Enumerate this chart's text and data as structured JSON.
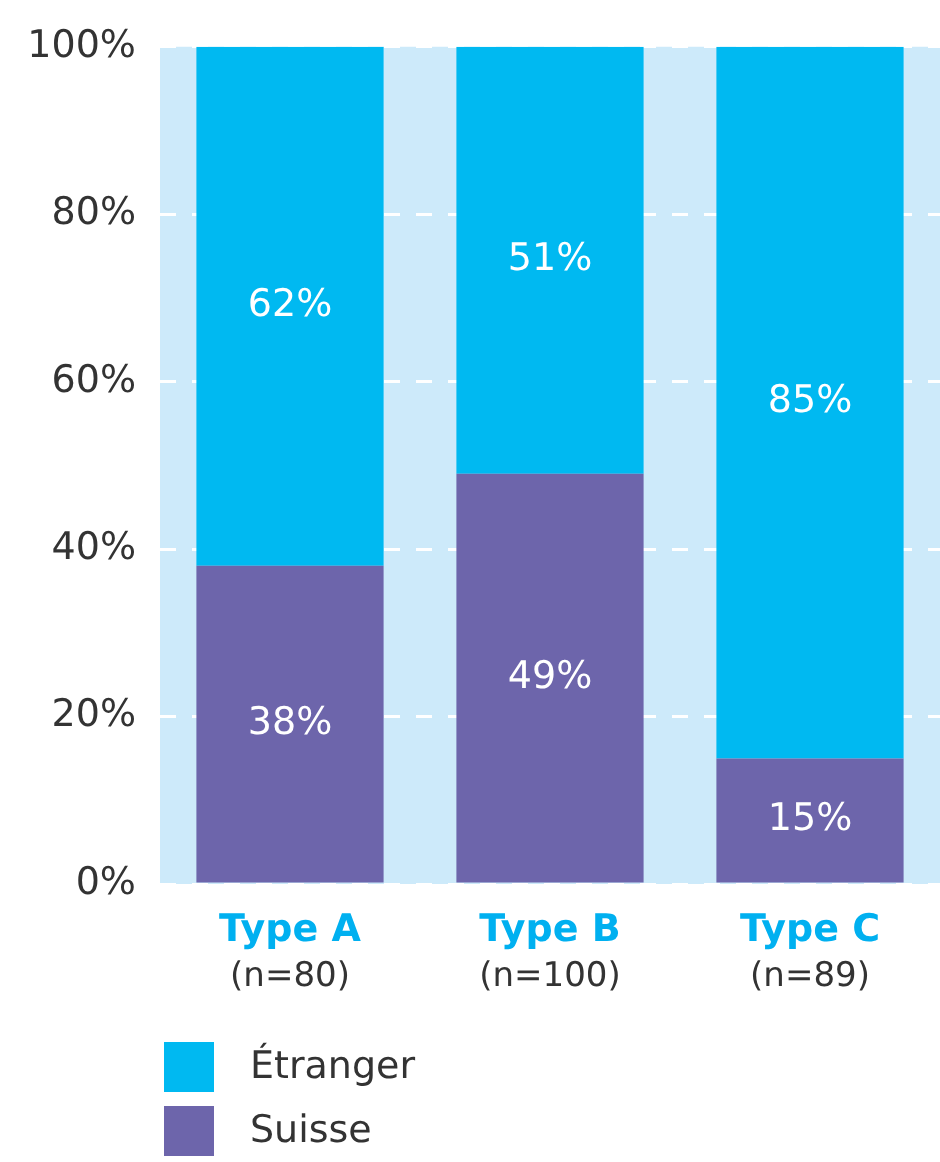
{
  "chart_data": {
    "type": "bar",
    "stacked": true,
    "categories": [
      "Type A\n(n=80)",
      "Type B\n(n=100)",
      "Type C\n(n=89)"
    ],
    "series": [
      {
        "name": "Suisse",
        "color": "#6d65ab",
        "values": [
          38,
          49,
          15
        ],
        "value_labels": [
          "38%",
          "49%",
          "15%"
        ]
      },
      {
        "name": "Étranger",
        "color": "#00b9f1",
        "values": [
          62,
          51,
          85
        ],
        "value_labels": [
          "62%",
          "51%",
          "85%"
        ]
      }
    ],
    "ylim": [
      0,
      100
    ],
    "yticks": [
      {
        "value": 0,
        "label": "0%"
      },
      {
        "value": 20,
        "label": "20%"
      },
      {
        "value": 40,
        "label": "40%"
      },
      {
        "value": 60,
        "label": "60%"
      },
      {
        "value": 80,
        "label": "80%"
      },
      {
        "value": 100,
        "label": "100%"
      }
    ],
    "bands": [
      {
        "axis": "y",
        "from": 0,
        "to": 100,
        "color": "#cdeafa"
      }
    ],
    "grid": "y",
    "legend": "bottom left"
  }
}
